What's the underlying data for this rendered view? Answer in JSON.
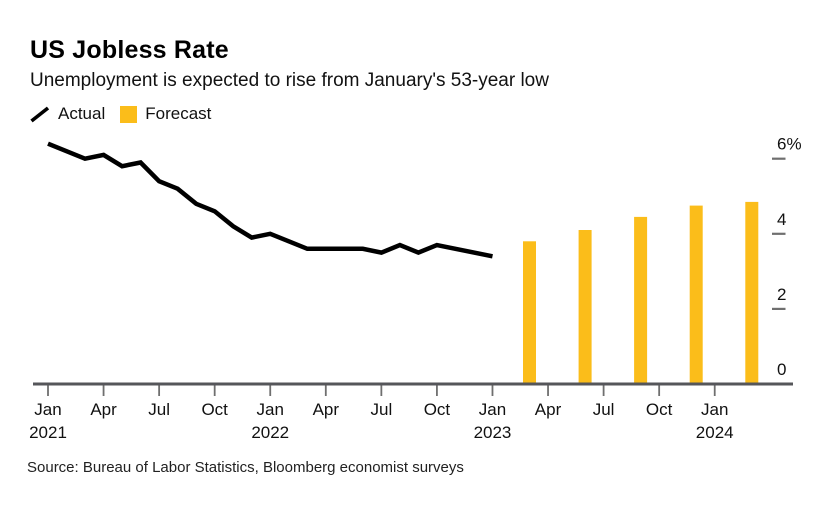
{
  "chart_data": {
    "type": "line+bar",
    "title": "US Jobless Rate",
    "subtitle": "Unemployment is expected to rise from January's 53-year low",
    "source": "Source: Bureau of Labor Statistics, Bloomberg economist surveys",
    "unit": "%",
    "ylim": [
      0,
      6
    ],
    "grid": false,
    "legend_position": "top-left",
    "colors": {
      "actual_line": "#000000",
      "forecast_bar": "#FBBD1A",
      "axis_line": "#55565A",
      "tick_mark": "#6F6F6F"
    },
    "legend": [
      {
        "label": "Actual",
        "marker": "line"
      },
      {
        "label": "Forecast",
        "marker": "bar"
      }
    ],
    "yticks": [
      {
        "value": 6,
        "label": "6%"
      },
      {
        "value": 4,
        "label": "4"
      },
      {
        "value": 2,
        "label": "2"
      },
      {
        "value": 0,
        "label": "0"
      }
    ],
    "xticks": [
      {
        "label": "Jan",
        "year": "2021",
        "month_offset": 0
      },
      {
        "label": "Apr",
        "month_offset": 3
      },
      {
        "label": "Jul",
        "month_offset": 6
      },
      {
        "label": "Oct",
        "month_offset": 9
      },
      {
        "label": "Jan",
        "year": "2022",
        "month_offset": 12
      },
      {
        "label": "Apr",
        "month_offset": 15
      },
      {
        "label": "Jul",
        "month_offset": 18
      },
      {
        "label": "Oct",
        "month_offset": 21
      },
      {
        "label": "Jan",
        "year": "2023",
        "month_offset": 24
      },
      {
        "label": "Apr",
        "month_offset": 27
      },
      {
        "label": "Jul",
        "month_offset": 30
      },
      {
        "label": "Oct",
        "month_offset": 33
      },
      {
        "label": "Jan",
        "year": "2024",
        "month_offset": 36
      }
    ],
    "series": [
      {
        "name": "Actual",
        "type": "line",
        "start": "Jan 2021",
        "end": "Jan 2023",
        "interval_months": 1,
        "values": [
          6.4,
          6.2,
          6.0,
          6.1,
          5.8,
          5.9,
          5.4,
          5.2,
          4.8,
          4.6,
          4.2,
          3.9,
          4.0,
          3.8,
          3.6,
          3.6,
          3.6,
          3.6,
          3.5,
          3.7,
          3.5,
          3.7,
          3.6,
          3.5,
          3.4
        ]
      },
      {
        "name": "Forecast",
        "type": "bar",
        "points": [
          {
            "label": "Mar 2023",
            "month_offset": 26,
            "value": 3.8
          },
          {
            "label": "Jun 2023",
            "month_offset": 29,
            "value": 4.1
          },
          {
            "label": "Sep 2023",
            "month_offset": 32,
            "value": 4.45
          },
          {
            "label": "Dec 2023",
            "month_offset": 35,
            "value": 4.75
          },
          {
            "label": "Mar 2024",
            "month_offset": 38,
            "value": 4.85
          }
        ]
      }
    ]
  }
}
